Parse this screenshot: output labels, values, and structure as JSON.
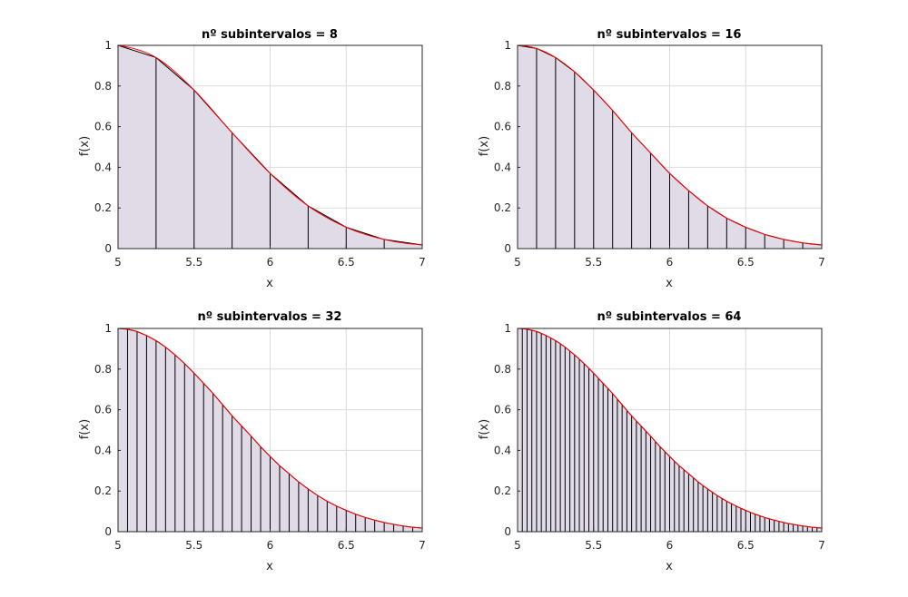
{
  "figure": {
    "background": "#ffffff",
    "curve_color": "#ff0000",
    "fill_color": "#e1dbe8",
    "grid_color": "#dcdcdc",
    "axes_color": "#262626"
  },
  "chart_data": [
    {
      "type": "area",
      "title": "nº subintervalos = 8",
      "xlabel": "x",
      "ylabel": "f(x)",
      "xlim": [
        5,
        7
      ],
      "ylim": [
        0,
        1
      ],
      "xticks": [
        "5",
        "5.5",
        "6",
        "6.5",
        "7"
      ],
      "yticks": [
        "0",
        "0.2",
        "0.4",
        "0.6",
        "0.8",
        "1"
      ],
      "grid": true,
      "subintervals": 8,
      "x": [
        5,
        5.25,
        5.5,
        5.75,
        6,
        6.25,
        6.5,
        6.75,
        7
      ],
      "y": [
        1,
        0.94,
        0.78,
        0.57,
        0.37,
        0.21,
        0.105,
        0.045,
        0.018
      ]
    },
    {
      "type": "area",
      "title": "nº subintervalos = 16",
      "xlabel": "x",
      "ylabel": "f(x)",
      "xlim": [
        5,
        7
      ],
      "ylim": [
        0,
        1
      ],
      "xticks": [
        "5",
        "5.5",
        "6",
        "6.5",
        "7"
      ],
      "yticks": [
        "0",
        "0.2",
        "0.4",
        "0.6",
        "0.8",
        "1"
      ],
      "grid": true,
      "subintervals": 16,
      "x": [
        5,
        5.125,
        5.25,
        5.375,
        5.5,
        5.625,
        5.75,
        5.875,
        6,
        6.125,
        6.25,
        6.375,
        6.5,
        6.625,
        6.75,
        6.875,
        7
      ],
      "y": [
        1,
        0.985,
        0.94,
        0.87,
        0.78,
        0.68,
        0.57,
        0.47,
        0.37,
        0.285,
        0.21,
        0.15,
        0.105,
        0.07,
        0.045,
        0.028,
        0.018
      ]
    },
    {
      "type": "area",
      "title": "nº subintervalos = 32",
      "xlabel": "x",
      "ylabel": "f(x)",
      "xlim": [
        5,
        7
      ],
      "ylim": [
        0,
        1
      ],
      "xticks": [
        "5",
        "5.5",
        "6",
        "6.5",
        "7"
      ],
      "yticks": [
        "0",
        "0.2",
        "0.4",
        "0.6",
        "0.8",
        "1"
      ],
      "grid": true,
      "subintervals": 32,
      "x": [
        5,
        5.0625,
        5.125,
        5.1875,
        5.25,
        5.3125,
        5.375,
        5.4375,
        5.5,
        5.5625,
        5.625,
        5.6875,
        5.75,
        5.8125,
        5.875,
        5.9375,
        6,
        6.0625,
        6.125,
        6.1875,
        6.25,
        6.3125,
        6.375,
        6.4375,
        6.5,
        6.5625,
        6.625,
        6.6875,
        6.75,
        6.8125,
        6.875,
        6.9375,
        7
      ],
      "y": [
        1,
        0.996,
        0.985,
        0.965,
        0.94,
        0.908,
        0.87,
        0.827,
        0.78,
        0.73,
        0.68,
        0.625,
        0.57,
        0.52,
        0.47,
        0.418,
        0.37,
        0.325,
        0.285,
        0.245,
        0.21,
        0.178,
        0.15,
        0.126,
        0.105,
        0.086,
        0.07,
        0.057,
        0.045,
        0.036,
        0.028,
        0.022,
        0.018
      ]
    },
    {
      "type": "area",
      "title": "nº subintervalos = 64",
      "xlabel": "x",
      "ylabel": "f(x)",
      "xlim": [
        5,
        7
      ],
      "ylim": [
        0,
        1
      ],
      "xticks": [
        "5",
        "5.5",
        "6",
        "6.5",
        "7"
      ],
      "yticks": [
        "0",
        "0.2",
        "0.4",
        "0.6",
        "0.8",
        "1"
      ],
      "grid": true,
      "subintervals": 64,
      "x": [
        5,
        5.03125,
        5.0625,
        5.09375,
        5.125,
        5.15625,
        5.1875,
        5.21875,
        5.25,
        5.28125,
        5.3125,
        5.34375,
        5.375,
        5.40625,
        5.4375,
        5.46875,
        5.5,
        5.53125,
        5.5625,
        5.59375,
        5.625,
        5.65625,
        5.6875,
        5.71875,
        5.75,
        5.78125,
        5.8125,
        5.84375,
        5.875,
        5.90625,
        5.9375,
        5.96875,
        6,
        6.03125,
        6.0625,
        6.09375,
        6.125,
        6.15625,
        6.1875,
        6.21875,
        6.25,
        6.28125,
        6.3125,
        6.34375,
        6.375,
        6.40625,
        6.4375,
        6.46875,
        6.5,
        6.53125,
        6.5625,
        6.59375,
        6.625,
        6.65625,
        6.6875,
        6.71875,
        6.75,
        6.78125,
        6.8125,
        6.84375,
        6.875,
        6.90625,
        6.9375,
        6.96875,
        7
      ],
      "y": [
        1,
        0.999,
        0.996,
        0.991,
        0.985,
        0.976,
        0.965,
        0.953,
        0.94,
        0.925,
        0.908,
        0.889,
        0.87,
        0.849,
        0.827,
        0.804,
        0.78,
        0.755,
        0.73,
        0.705,
        0.68,
        0.652,
        0.625,
        0.597,
        0.57,
        0.545,
        0.52,
        0.495,
        0.47,
        0.444,
        0.418,
        0.394,
        0.37,
        0.347,
        0.325,
        0.305,
        0.285,
        0.265,
        0.245,
        0.227,
        0.21,
        0.194,
        0.178,
        0.164,
        0.15,
        0.138,
        0.126,
        0.115,
        0.105,
        0.095,
        0.086,
        0.078,
        0.07,
        0.063,
        0.057,
        0.051,
        0.045,
        0.04,
        0.036,
        0.032,
        0.028,
        0.025,
        0.022,
        0.02,
        0.018
      ]
    }
  ]
}
